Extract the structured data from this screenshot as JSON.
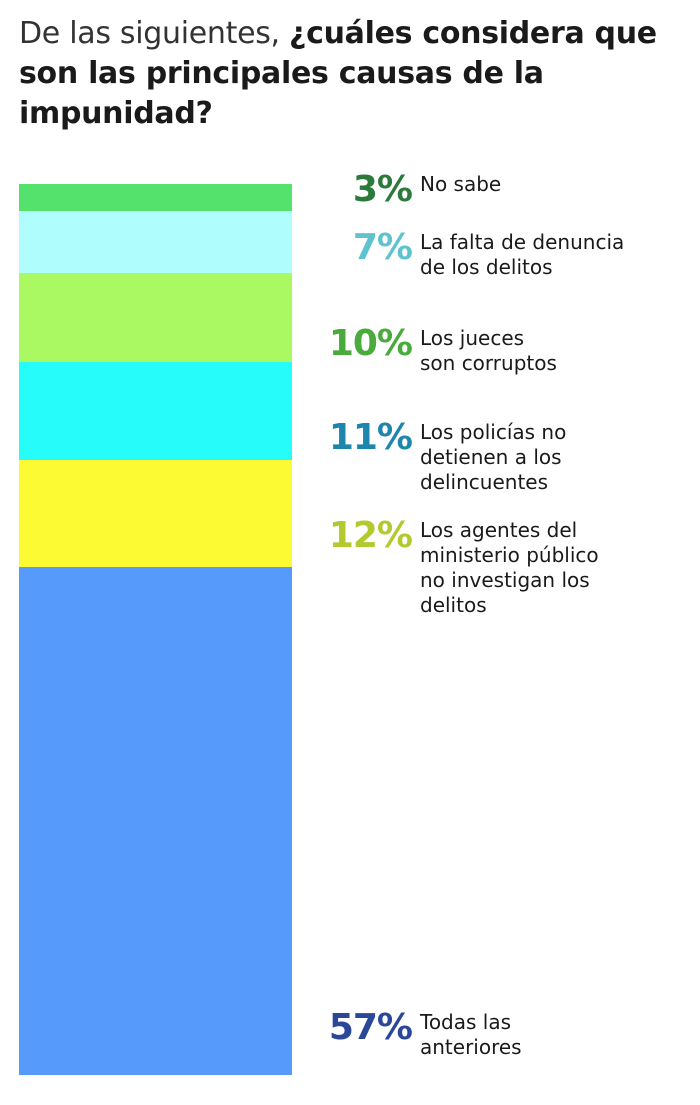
{
  "title": {
    "light": "De las siguientes, ",
    "bold": "¿cuáles considera que son las principales causas de la impunidad?"
  },
  "chart_data": {
    "type": "bar",
    "subtype": "stacked-100",
    "title": "De las siguientes, ¿cuáles considera que son las principales causas de la impunidad?",
    "unit": "%",
    "categories": [
      "No sabe",
      "La falta de denuncia de los delitos",
      "Los jueces son corruptos",
      "Los policías no detienen a los delincuentes",
      "Los agentes del ministerio público no investigan los delitos",
      "Todas las anteriores"
    ],
    "values": [
      3,
      7,
      10,
      11,
      12,
      57
    ],
    "labels": [
      "3%",
      "7%",
      "10%",
      "11%",
      "12%",
      "57%"
    ],
    "bar_colors": [
      "#55e26c",
      "#b0fdfd",
      "#aaf962",
      "#26fdfb",
      "#fcfa33",
      "#569bfb"
    ],
    "label_colors": [
      "#2b7a3c",
      "#5fc3cf",
      "#4aab3d",
      "#1d86ad",
      "#b3c92d",
      "#2b479a"
    ],
    "legend_lines": [
      [
        "No sabe"
      ],
      [
        "La falta de denuncia",
        "de los delitos"
      ],
      [
        "Los jueces",
        "son corruptos"
      ],
      [
        "Los policías no",
        "detienen a los",
        "delincuentes"
      ],
      [
        "Los agentes del",
        "ministerio público",
        "no investigan los",
        "delitos"
      ],
      [
        "Todas las",
        "anteriores"
      ]
    ]
  }
}
